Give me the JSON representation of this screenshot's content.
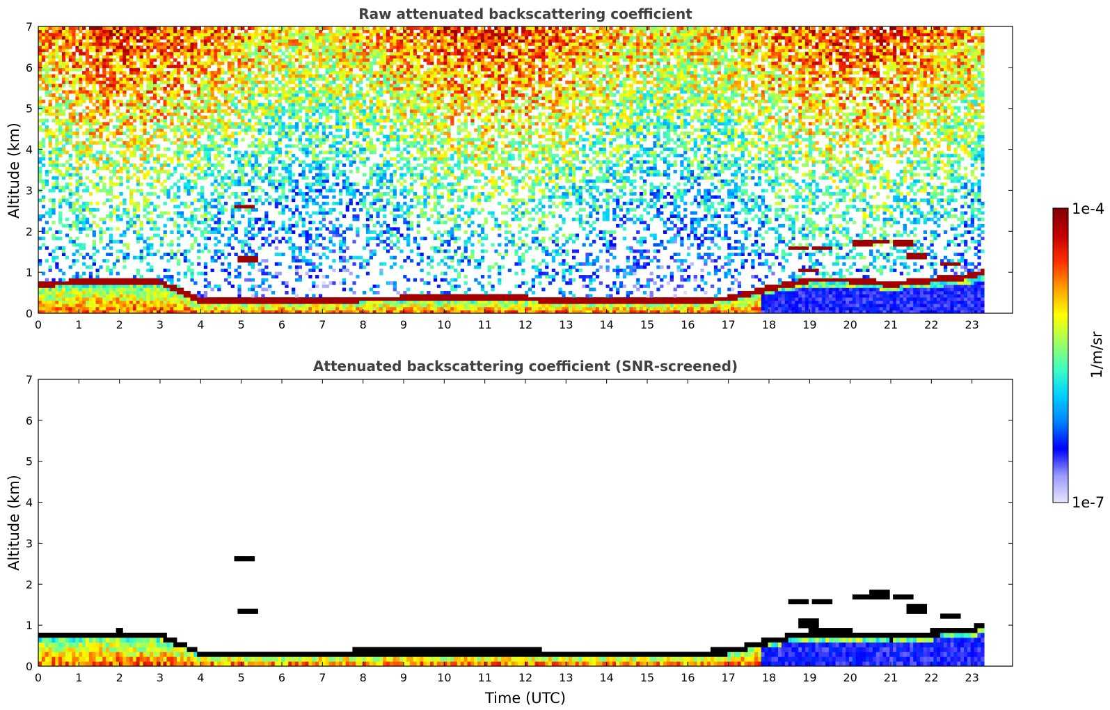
{
  "chart_data": [
    {
      "type": "heatmap",
      "title": "Raw attenuated backscattering coefficient",
      "xlabel": "",
      "ylabel": "Altitude (km)",
      "xlim": [
        0,
        24
      ],
      "ylim": [
        0,
        7
      ],
      "x_ticks": [
        "0",
        "1",
        "2",
        "3",
        "4",
        "5",
        "6",
        "7",
        "8",
        "9",
        "10",
        "11",
        "12",
        "13",
        "14",
        "15",
        "16",
        "17",
        "18",
        "19",
        "20",
        "21",
        "22",
        "23"
      ],
      "y_ticks": [
        "0",
        "1",
        "2",
        "3",
        "4",
        "5",
        "6",
        "7"
      ],
      "data_end_time": 23.3,
      "description_layers": {
        "boundary_layer_top_km": [
          [
            0,
            0.7
          ],
          [
            2,
            0.8
          ],
          [
            3,
            0.75
          ],
          [
            4,
            0.3
          ],
          [
            6,
            0.3
          ],
          [
            9,
            0.35
          ],
          [
            12,
            0.35
          ],
          [
            13,
            0.3
          ],
          [
            16,
            0.3
          ],
          [
            17,
            0.35
          ],
          [
            18,
            0.6
          ],
          [
            19,
            0.8
          ],
          [
            20,
            0.8
          ],
          [
            21,
            0.7
          ],
          [
            22,
            0.8
          ],
          [
            23,
            0.9
          ],
          [
            23.3,
            1.0
          ]
        ],
        "elevated_layers_km": [
          [
            18.7,
            1.6
          ],
          [
            19.3,
            1.6
          ],
          [
            20.3,
            1.7
          ],
          [
            20.7,
            1.75
          ],
          [
            21.3,
            1.7
          ],
          [
            21.6,
            1.4
          ],
          [
            19.0,
            1.05
          ],
          [
            22.5,
            1.2
          ],
          [
            5.1,
            2.6
          ],
          [
            5.2,
            1.35
          ]
        ]
      }
    },
    {
      "type": "heatmap",
      "title": "Attenuated backscattering coefficient (SNR-screened)",
      "xlabel": "Time (UTC)",
      "ylabel": "Altitude (km)",
      "xlim": [
        0,
        24
      ],
      "ylim": [
        0,
        7
      ],
      "x_ticks": [
        "0",
        "1",
        "2",
        "3",
        "4",
        "5",
        "6",
        "7",
        "8",
        "9",
        "10",
        "11",
        "12",
        "13",
        "14",
        "15",
        "16",
        "17",
        "18",
        "19",
        "20",
        "21",
        "22",
        "23"
      ],
      "y_ticks": [
        "0",
        "1",
        "2",
        "3",
        "4",
        "5",
        "6",
        "7"
      ],
      "data_end_time": 23.3
    }
  ],
  "colorbar": {
    "label": "1/m/sr",
    "max_label": "1e-4",
    "min_label": "1e-7",
    "scale": "log",
    "range": [
      1e-07,
      0.0001
    ],
    "colormap": [
      "#e6e6ff",
      "#9b9bff",
      "#0000ff",
      "#0080ff",
      "#00d0ff",
      "#40ffc0",
      "#a0ff60",
      "#ffff00",
      "#ffa000",
      "#ff3000",
      "#c00000",
      "#800000"
    ]
  }
}
